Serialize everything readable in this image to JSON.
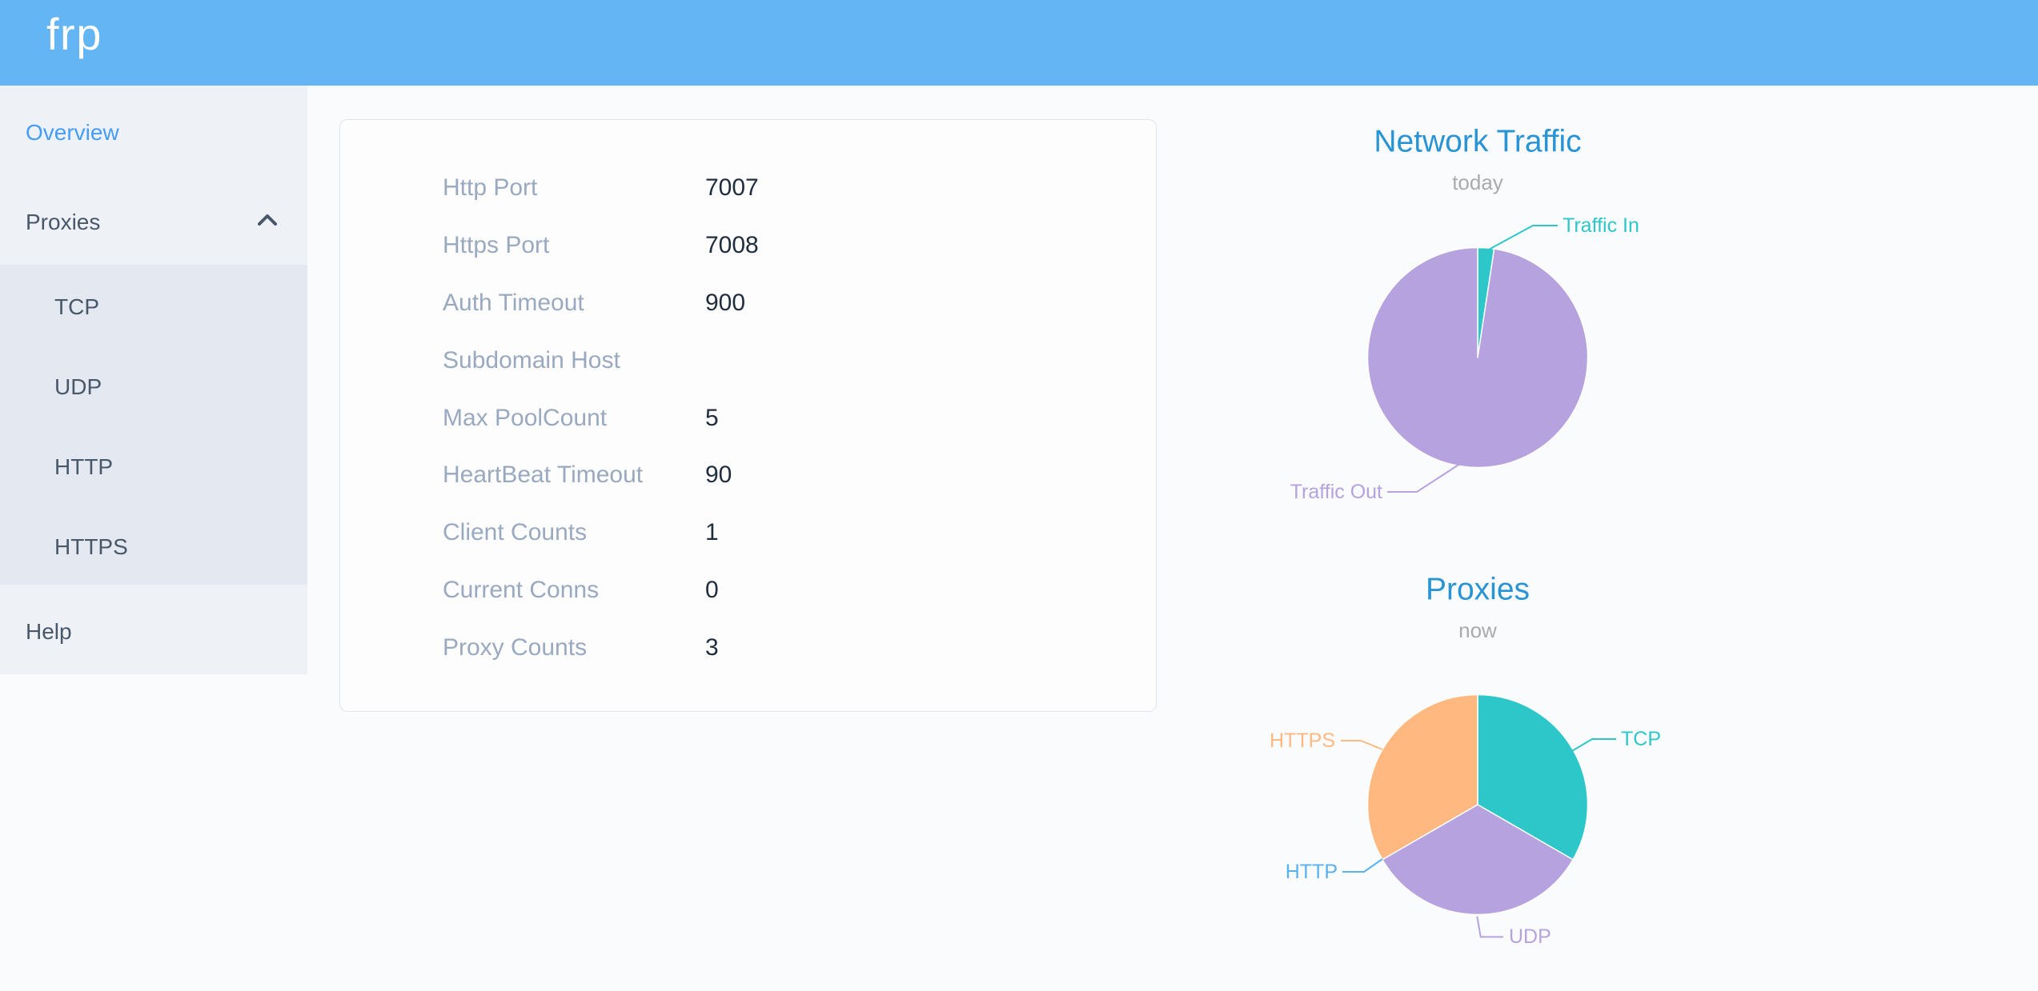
{
  "app": {
    "logo": "frp"
  },
  "sidebar": {
    "items": [
      {
        "id": "overview",
        "label": "Overview",
        "active": true
      },
      {
        "id": "proxies",
        "label": "Proxies",
        "expanded": true,
        "icon": "chevron-up-icon"
      },
      {
        "id": "tcp",
        "label": "TCP"
      },
      {
        "id": "udp",
        "label": "UDP"
      },
      {
        "id": "http",
        "label": "HTTP"
      },
      {
        "id": "https",
        "label": "HTTPS"
      },
      {
        "id": "help",
        "label": "Help"
      }
    ]
  },
  "overview": {
    "rows": [
      {
        "label": "Http Port",
        "value": "7007"
      },
      {
        "label": "Https Port",
        "value": "7008"
      },
      {
        "label": "Auth Timeout",
        "value": "900"
      },
      {
        "label": "Subdomain Host",
        "value": ""
      },
      {
        "label": "Max PoolCount",
        "value": "5"
      },
      {
        "label": "HeartBeat Timeout",
        "value": "90"
      },
      {
        "label": "Client Counts",
        "value": "1"
      },
      {
        "label": "Current Conns",
        "value": "0"
      },
      {
        "label": "Proxy Counts",
        "value": "3"
      }
    ]
  },
  "chart_data": [
    {
      "type": "pie",
      "title": "Network Traffic",
      "subtitle": "today",
      "legend": "none",
      "series": [
        {
          "name": "Traffic In",
          "value": 2.4,
          "color": "#2ec7c9"
        },
        {
          "name": "Traffic Out",
          "value": 97.6,
          "color": "#b6a2de"
        }
      ],
      "unit": "percent of today's traffic"
    },
    {
      "type": "pie",
      "title": "Proxies",
      "subtitle": "now",
      "legend": "none",
      "series": [
        {
          "name": "TCP",
          "value": 1,
          "color": "#2ec7c9"
        },
        {
          "name": "UDP",
          "value": 1,
          "color": "#b6a2de"
        },
        {
          "name": "HTTP",
          "value": 0,
          "color": "#5ab1ef"
        },
        {
          "name": "HTTPS",
          "value": 1,
          "color": "#ffb980"
        }
      ],
      "unit": "proxy count"
    }
  ],
  "colors": {
    "header": "#63b5f4",
    "sidebar_bg": "#eef1f6",
    "submenu_bg": "#e4e8f1",
    "menu_text": "#48576a",
    "menu_active": "#449df9",
    "chart_title": "#2994d4",
    "chart_subtitle": "#aaaaaa",
    "card_label": "#99a9bf",
    "card_value": "#1f2d3d"
  }
}
